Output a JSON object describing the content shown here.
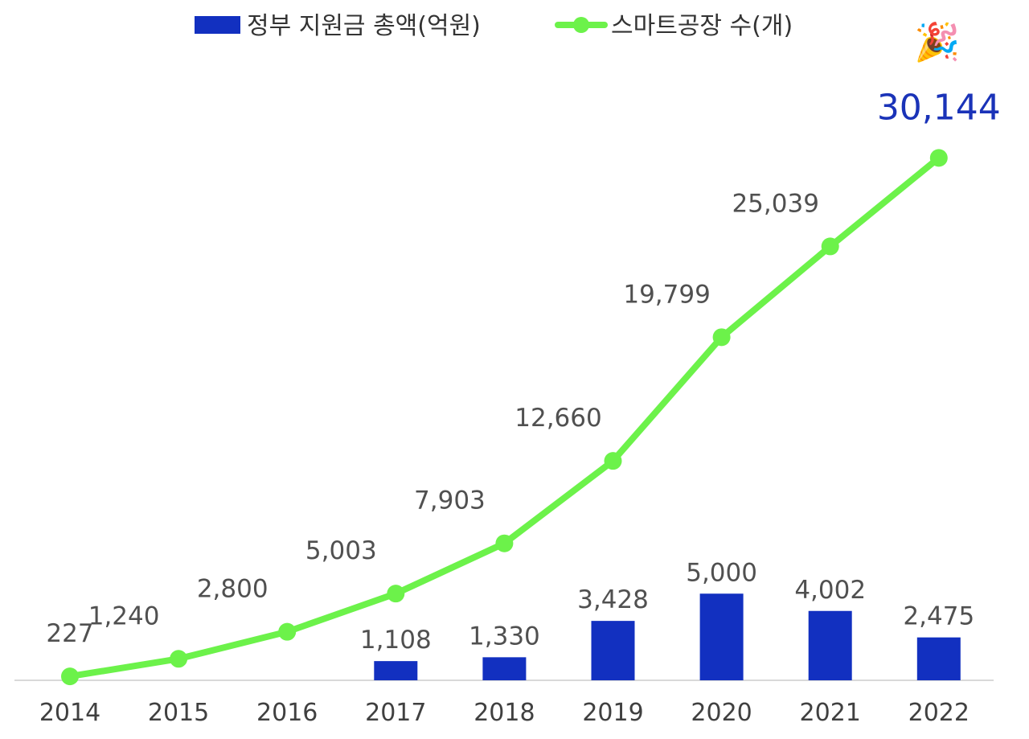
{
  "chart_data": {
    "type": "bar+line",
    "categories": [
      "2014",
      "2015",
      "2016",
      "2017",
      "2018",
      "2019",
      "2020",
      "2021",
      "2022"
    ],
    "series": [
      {
        "name": "정부 지원금 총액(억원)",
        "type": "bar",
        "color": "#1230c0",
        "values": [
          null,
          null,
          null,
          1108,
          1330,
          3428,
          5000,
          4002,
          2475
        ],
        "labels": [
          "",
          "",
          "",
          "1,108",
          "1,330",
          "3,428",
          "5,000",
          "4,002",
          "2,475"
        ]
      },
      {
        "name": "스마트공장 수(개)",
        "type": "line",
        "color": "#6cf24a",
        "values": [
          227,
          1240,
          2800,
          5003,
          7903,
          12660,
          19799,
          25039,
          30144
        ],
        "labels": [
          "227",
          "1,240",
          "2,800",
          "5,003",
          "7,903",
          "12,660",
          "19,799",
          "25,039",
          "30,144"
        ]
      }
    ],
    "legend_position": "top",
    "grid": false,
    "highlight_icon": "party-popper-icon",
    "highlight_glyph": "🎉"
  }
}
